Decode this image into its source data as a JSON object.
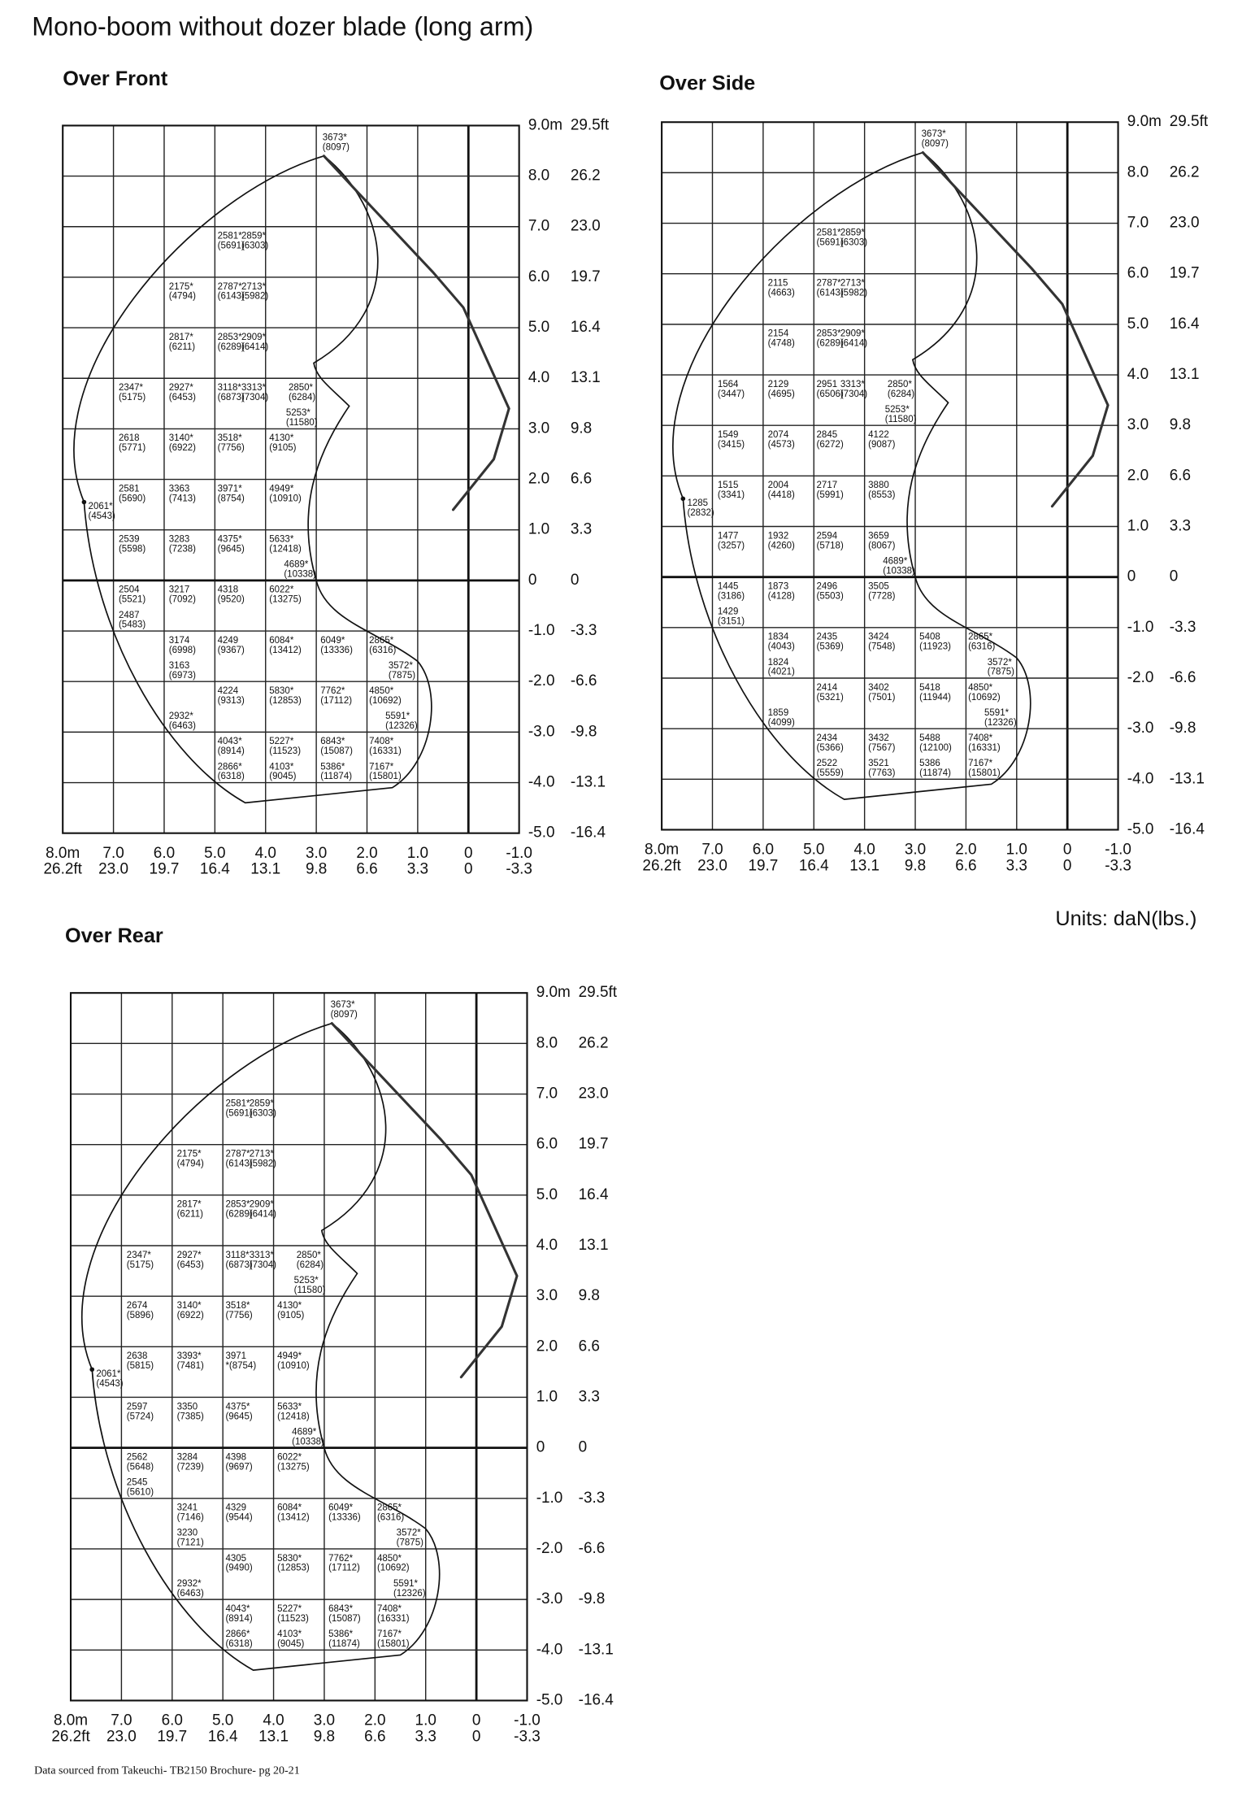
{
  "title": "Mono-boom without dozer blade (long arm)",
  "units": "Units: daN(lbs.)",
  "source": "Data sourced from Takeuchi- TB2150 Brochure- pg 20-21",
  "height_axis": [
    [
      "9.0m",
      "29.5ft"
    ],
    [
      "8.0",
      "26.2"
    ],
    [
      "7.0",
      "23.0"
    ],
    [
      "6.0",
      "19.7"
    ],
    [
      "5.0",
      "16.4"
    ],
    [
      "4.0",
      "13.1"
    ],
    [
      "3.0",
      "9.8"
    ],
    [
      "2.0",
      "6.6"
    ],
    [
      "1.0",
      "3.3"
    ],
    [
      "0",
      "0"
    ],
    [
      "-1.0",
      "-3.3"
    ],
    [
      "-2.0",
      "-6.6"
    ],
    [
      "-3.0",
      "-9.8"
    ],
    [
      "-4.0",
      "-13.1"
    ],
    [
      "-5.0",
      "-16.4"
    ]
  ],
  "radius_axis": [
    [
      "8.0m",
      "26.2ft"
    ],
    [
      "7.0",
      "23.0"
    ],
    [
      "6.0",
      "19.7"
    ],
    [
      "5.0",
      "16.4"
    ],
    [
      "4.0",
      "13.1"
    ],
    [
      "3.0",
      "9.8"
    ],
    [
      "2.0",
      "6.6"
    ],
    [
      "1.0",
      "3.3"
    ],
    [
      "0",
      "0"
    ],
    [
      "-1.0",
      "-3.3"
    ]
  ],
  "views": [
    {
      "title": "Over Front",
      "loads": [
        [
          "3673*",
          "(8097)"
        ],
        [
          "2581*",
          "(5691)"
        ],
        [
          "2859*",
          "(6303)"
        ],
        [
          "2175*",
          "(4794)"
        ],
        [
          "2787*",
          "(6143)"
        ],
        [
          "2713*",
          "(5982)"
        ],
        [
          "2817*",
          "(6211)"
        ],
        [
          "2853*",
          "(6289)"
        ],
        [
          "2909*",
          "(6414)"
        ],
        [
          "2347*",
          "(5175)"
        ],
        [
          "2927*",
          "(6453)"
        ],
        [
          "3118*",
          "(6873)"
        ],
        [
          "3313*",
          "(7304)"
        ],
        [
          "2850*",
          "(6284)"
        ],
        [
          "5253*",
          "(11580)"
        ],
        [
          "2618",
          "(5771)"
        ],
        [
          "3140*",
          "(6922)"
        ],
        [
          "3518*",
          "(7756)"
        ],
        [
          "4130*",
          "(9105)"
        ],
        [
          "2581",
          "(5690)"
        ],
        [
          "3363",
          "(7413)"
        ],
        [
          "3971*",
          "(8754)"
        ],
        [
          "4949*",
          "(10910)"
        ],
        [
          "2061*",
          "(4543)"
        ],
        [
          "2539",
          "(5598)"
        ],
        [
          "3283",
          "(7238)"
        ],
        [
          "4375*",
          "(9645)"
        ],
        [
          "5633*",
          "(12418)"
        ],
        [
          "4689*",
          "(10338)"
        ],
        [
          "2504",
          "(5521)"
        ],
        [
          "3217",
          "(7092)"
        ],
        [
          "4318",
          "(9520)"
        ],
        [
          "6022*",
          "(13275)"
        ],
        [
          "2487",
          "(5483)"
        ],
        [
          "3174",
          "(6998)"
        ],
        [
          "4249",
          "(9367)"
        ],
        [
          "6084*",
          "(13412)"
        ],
        [
          "6049*",
          "(13336)"
        ],
        [
          "2865*",
          "(6316)"
        ],
        [
          "3163",
          "(6973)"
        ],
        [
          "3572*",
          "(7875)"
        ],
        [
          "4224",
          "(9313)"
        ],
        [
          "5830*",
          "(12853)"
        ],
        [
          "7762*",
          "(17112)"
        ],
        [
          "4850*",
          "(10692)"
        ],
        [
          "5591*",
          "(12326)"
        ],
        [
          "2932*",
          "(6463)"
        ],
        [
          "4043*",
          "(8914)"
        ],
        [
          "5227*",
          "(11523)"
        ],
        [
          "6843*",
          "(15087)"
        ],
        [
          "7408*",
          "(16331)"
        ],
        [
          "2866*",
          "(6318)"
        ],
        [
          "4103*",
          "(9045)"
        ],
        [
          "5386*",
          "(11874)"
        ],
        [
          "7167*",
          "(15801)"
        ]
      ]
    },
    {
      "title": "Over Side",
      "loads": [
        [
          "3673*",
          "(8097)"
        ],
        [
          "2581*",
          "(5691)"
        ],
        [
          "2859*",
          "(6303)"
        ],
        [
          "2115",
          "(4663)"
        ],
        [
          "2787*",
          "(6143)"
        ],
        [
          "2713*",
          "(5982)"
        ],
        [
          "2154",
          "(4748)"
        ],
        [
          "2853*",
          "(6289)"
        ],
        [
          "2909*",
          "(6414)"
        ],
        [
          "1564",
          "(3447)"
        ],
        [
          "2129",
          "(4695)"
        ],
        [
          "2951",
          "(6506)"
        ],
        [
          "3313*",
          "(7304)"
        ],
        [
          "2850*",
          "(6284)"
        ],
        [
          "5253*",
          "(11580)"
        ],
        [
          "1549",
          "(3415)"
        ],
        [
          "2074",
          "(4573)"
        ],
        [
          "2845",
          "(6272)"
        ],
        [
          "4122",
          "(9087)"
        ],
        [
          "1515",
          "(3341)"
        ],
        [
          "2004",
          "(4418)"
        ],
        [
          "2717",
          "(5991)"
        ],
        [
          "3880",
          "(8553)"
        ],
        [
          "1285",
          "(2832)"
        ],
        [
          "1477",
          "(3257)"
        ],
        [
          "1932",
          "(4260)"
        ],
        [
          "2594",
          "(5718)"
        ],
        [
          "3659",
          "(8067)"
        ],
        [
          "4689*",
          "(10338)"
        ],
        [
          "1445",
          "(3186)"
        ],
        [
          "1873",
          "(4128)"
        ],
        [
          "2496",
          "(5503)"
        ],
        [
          "3505",
          "(7728)"
        ],
        [
          "1429",
          "(3151)"
        ],
        [
          "1834",
          "(4043)"
        ],
        [
          "2435",
          "(5369)"
        ],
        [
          "3424",
          "(7548)"
        ],
        [
          "5408",
          "(11923)"
        ],
        [
          "2865*",
          "(6316)"
        ],
        [
          "1824",
          "(4021)"
        ],
        [
          "3572*",
          "(7875)"
        ],
        [
          "2414",
          "(5321)"
        ],
        [
          "3402",
          "(7501)"
        ],
        [
          "5418",
          "(11944)"
        ],
        [
          "4850*",
          "(10692)"
        ],
        [
          "5591*",
          "(12326)"
        ],
        [
          "1859",
          "(4099)"
        ],
        [
          "2434",
          "(5366)"
        ],
        [
          "3432",
          "(7567)"
        ],
        [
          "5488",
          "(12100)"
        ],
        [
          "7408*",
          "(16331)"
        ],
        [
          "2522",
          "(5559)"
        ],
        [
          "3521",
          "(7763)"
        ],
        [
          "5386",
          "(11874)"
        ],
        [
          "7167*",
          "(15801)"
        ]
      ]
    },
    {
      "title": "Over Rear",
      "loads": [
        [
          "3673*",
          "(8097)"
        ],
        [
          "2581*",
          "(5691)"
        ],
        [
          "2859*",
          "(6303)"
        ],
        [
          "2175*",
          "(4794)"
        ],
        [
          "2787*",
          "(6143)"
        ],
        [
          "2713*",
          "(5982)"
        ],
        [
          "2817*",
          "(6211)"
        ],
        [
          "2853*",
          "(6289)"
        ],
        [
          "2909*",
          "(6414)"
        ],
        [
          "2347*",
          "(5175)"
        ],
        [
          "2927*",
          "(6453)"
        ],
        [
          "3118*",
          "(6873)"
        ],
        [
          "3313*",
          "(7304)"
        ],
        [
          "2850*",
          "(6284)"
        ],
        [
          "5253*",
          "(11580)"
        ],
        [
          "2674",
          "(5896)"
        ],
        [
          "3140*",
          "(6922)"
        ],
        [
          "3518*",
          "(7756)"
        ],
        [
          "4130*",
          "(9105)"
        ],
        [
          "2638",
          "(5815)"
        ],
        [
          "3393*",
          "(7481)"
        ],
        [
          "3971",
          "*(8754)"
        ],
        [
          "4949*",
          "(10910)"
        ],
        [
          "2061*",
          "(4543)"
        ],
        [
          "2597",
          "(5724)"
        ],
        [
          "3350",
          "(7385)"
        ],
        [
          "4375*",
          "(9645)"
        ],
        [
          "5633*",
          "(12418)"
        ],
        [
          "4689*",
          "(10338)"
        ],
        [
          "2562",
          "(5648)"
        ],
        [
          "3284",
          "(7239)"
        ],
        [
          "4398",
          "(9697)"
        ],
        [
          "6022*",
          "(13275)"
        ],
        [
          "2545",
          "(5610)"
        ],
        [
          "3241",
          "(7146)"
        ],
        [
          "4329",
          "(9544)"
        ],
        [
          "6084*",
          "(13412)"
        ],
        [
          "6049*",
          "(13336)"
        ],
        [
          "2865*",
          "(6316)"
        ],
        [
          "3230",
          "(7121)"
        ],
        [
          "3572*",
          "(7875)"
        ],
        [
          "4305",
          "(9490)"
        ],
        [
          "5830*",
          "(12853)"
        ],
        [
          "7762*",
          "(17112)"
        ],
        [
          "4850*",
          "(10692)"
        ],
        [
          "5591*",
          "(12326)"
        ],
        [
          "2932*",
          "(6463)"
        ],
        [
          "4043*",
          "(8914)"
        ],
        [
          "5227*",
          "(11523)"
        ],
        [
          "6843*",
          "(15087)"
        ],
        [
          "7408*",
          "(16331)"
        ],
        [
          "2866*",
          "(6318)"
        ],
        [
          "4103*",
          "(9045)"
        ],
        [
          "5386*",
          "(11874)"
        ],
        [
          "7167*",
          "(15801)"
        ]
      ]
    }
  ]
}
